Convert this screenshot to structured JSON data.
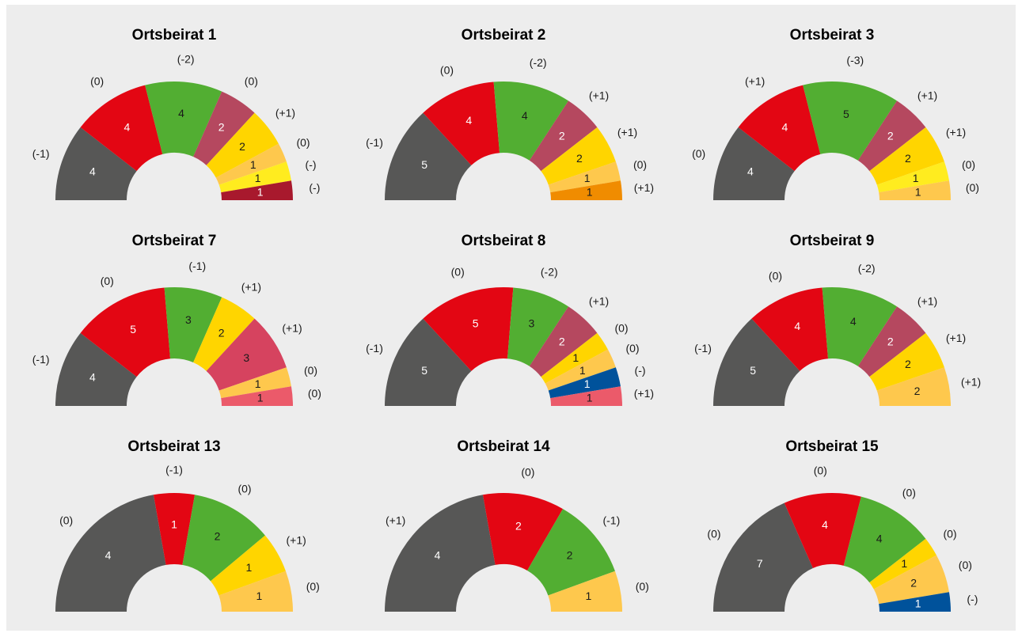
{
  "chart_data": [
    {
      "type": "semi-donut",
      "title": "Ortsbeirat 1",
      "values": [
        4,
        4,
        4,
        2,
        2,
        1,
        1,
        1
      ],
      "changes": [
        "(-1)",
        "(0)",
        "(-2)",
        "(0)",
        "(+1)",
        "(0)",
        "(-)",
        "(-)"
      ],
      "colors": [
        "#575756",
        "#e30613",
        "#52ae32",
        "#b5485f",
        "#ffd500",
        "#fec84d",
        "#ffec1f",
        "#a8192d"
      ]
    },
    {
      "type": "semi-donut",
      "title": "Ortsbeirat 2",
      "values": [
        5,
        4,
        4,
        2,
        2,
        1,
        1
      ],
      "changes": [
        "(-1)",
        "(0)",
        "(-2)",
        "(+1)",
        "(+1)",
        "(0)",
        "(+1)"
      ],
      "colors": [
        "#575756",
        "#e30613",
        "#52ae32",
        "#b5485f",
        "#ffd500",
        "#fec84d",
        "#f08c00"
      ]
    },
    {
      "type": "semi-donut",
      "title": "Ortsbeirat 3",
      "values": [
        4,
        4,
        5,
        2,
        2,
        1,
        1
      ],
      "changes": [
        "(0)",
        "(+1)",
        "(-3)",
        "(+1)",
        "(+1)",
        "(0)",
        "(0)"
      ],
      "colors": [
        "#575756",
        "#e30613",
        "#52ae32",
        "#b5485f",
        "#ffd500",
        "#ffec1f",
        "#fec84d"
      ]
    },
    {
      "type": "semi-donut",
      "title": "Ortsbeirat 7",
      "values": [
        4,
        5,
        3,
        2,
        3,
        1,
        1
      ],
      "changes": [
        "(-1)",
        "(0)",
        "(-1)",
        "(+1)",
        "(+1)",
        "(0)",
        "(0)"
      ],
      "colors": [
        "#575756",
        "#e30613",
        "#52ae32",
        "#ffd500",
        "#d6435f",
        "#fec84d",
        "#eb5a6a"
      ]
    },
    {
      "type": "semi-donut",
      "title": "Ortsbeirat 8",
      "values": [
        5,
        5,
        3,
        2,
        1,
        1,
        1,
        1
      ],
      "changes": [
        "(-1)",
        "(0)",
        "(-2)",
        "(+1)",
        "(0)",
        "(0)",
        "(-)",
        "(+1)"
      ],
      "colors": [
        "#575756",
        "#e30613",
        "#52ae32",
        "#b5485f",
        "#ffd500",
        "#fec84d",
        "#00529b",
        "#eb5a6a"
      ]
    },
    {
      "type": "semi-donut",
      "title": "Ortsbeirat 9",
      "values": [
        5,
        4,
        4,
        2,
        2,
        2
      ],
      "changes": [
        "(-1)",
        "(0)",
        "(-2)",
        "(+1)",
        "(+1)",
        "(+1)"
      ],
      "colors": [
        "#575756",
        "#e30613",
        "#52ae32",
        "#b5485f",
        "#ffd500",
        "#fec84d"
      ]
    },
    {
      "type": "semi-donut",
      "title": "Ortsbeirat 13",
      "values": [
        4,
        1,
        2,
        1,
        1
      ],
      "changes": [
        "(0)",
        "(-1)",
        "(0)",
        "(+1)",
        "(0)"
      ],
      "colors": [
        "#575756",
        "#e30613",
        "#52ae32",
        "#ffd500",
        "#fec84d"
      ]
    },
    {
      "type": "semi-donut",
      "title": "Ortsbeirat 14",
      "values": [
        4,
        2,
        2,
        1
      ],
      "changes": [
        "(+1)",
        "(0)",
        "(-1)",
        "(0)"
      ],
      "colors": [
        "#575756",
        "#e30613",
        "#52ae32",
        "#fec84d"
      ]
    },
    {
      "type": "semi-donut",
      "title": "Ortsbeirat 15",
      "values": [
        7,
        4,
        4,
        1,
        2,
        1
      ],
      "changes": [
        "(0)",
        "(0)",
        "(0)",
        "(0)",
        "(0)",
        "(-)"
      ],
      "colors": [
        "#575756",
        "#e30613",
        "#52ae32",
        "#ffd500",
        "#fec84d",
        "#00529b"
      ]
    }
  ]
}
